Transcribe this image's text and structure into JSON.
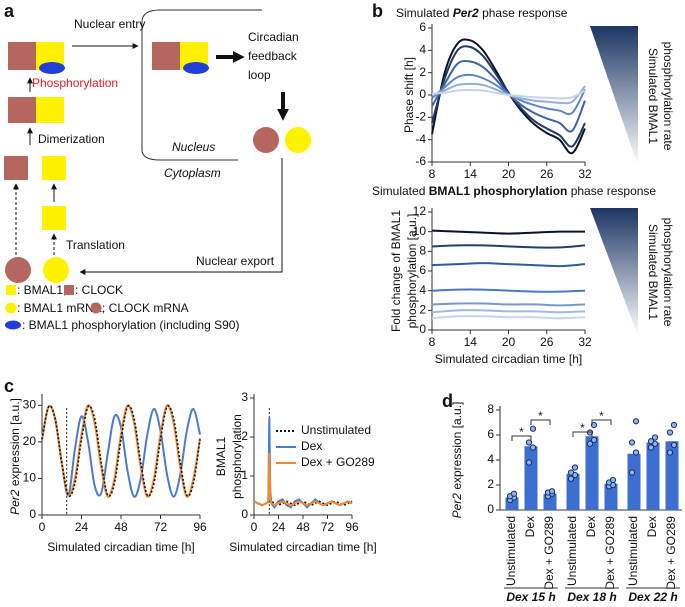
{
  "panel_labels": [
    "a",
    "b",
    "c",
    "d"
  ],
  "diagram": {
    "nuclear_entry": "Nuclear entry",
    "phosphorylation": "Phosphorylation",
    "feedback_loop": [
      "Circadian",
      "feedback",
      "loop"
    ],
    "dimerization": "Dimerization",
    "translation": "Translation",
    "nucleus": "Nucleus",
    "cytoplasm": "Cytoplasm",
    "nuclear_export": "Nuclear export",
    "legend": [
      ": BMAL1,",
      ": CLOCK",
      ": BMAL1 mRNA,",
      ": CLOCK mRNA",
      ": BMAL1 phosphorylation (including S90)"
    ]
  },
  "chart_data": [
    {
      "type": "line",
      "title": [
        "Simulated ",
        "Per2",
        " phase response"
      ],
      "title_style": [
        "normal",
        "bold-italic",
        "normal"
      ],
      "ylabel": "Phase shift [h]",
      "gradient_label": [
        "Simulated BMAL1",
        "phosphorylation rate"
      ],
      "x": [
        8,
        10,
        12,
        14,
        16,
        18,
        20,
        22,
        24,
        26,
        28,
        30,
        32
      ],
      "xlim": [
        8,
        32
      ],
      "xticks": [
        8,
        14,
        20,
        26,
        32
      ],
      "ylim": [
        -6,
        6
      ],
      "yticks": [
        -6,
        -4,
        -2,
        0,
        2,
        4,
        6
      ],
      "series": [
        {
          "color": "#0b1426",
          "values": [
            -3.5,
            2,
            4.6,
            4.9,
            4.0,
            2.2,
            0.2,
            -1.4,
            -2.6,
            -3.4,
            -4.0,
            -5.2,
            -3.0
          ]
        },
        {
          "color": "#1f3a66",
          "values": [
            -2.5,
            1.5,
            4.0,
            4.3,
            3.5,
            1.9,
            0.2,
            -1.2,
            -2.3,
            -3.0,
            -3.6,
            -4.6,
            -2.5
          ]
        },
        {
          "color": "#3b64a8",
          "values": [
            -1.0,
            1.0,
            2.8,
            3.0,
            2.5,
            1.4,
            0.1,
            -0.9,
            -1.6,
            -2.1,
            -2.5,
            -3.2,
            -0.5
          ]
        },
        {
          "color": "#5d86c4",
          "values": [
            -0.3,
            0.7,
            1.6,
            1.8,
            1.5,
            0.9,
            0.1,
            -0.5,
            -0.9,
            -1.2,
            -1.4,
            -1.6,
            0.5
          ]
        },
        {
          "color": "#92aed8",
          "values": [
            0,
            0.4,
            0.9,
            1.0,
            0.9,
            0.5,
            0,
            -0.3,
            -0.5,
            -0.6,
            -0.7,
            -0.6,
            0.8
          ]
        },
        {
          "color": "#c6d4ea",
          "values": [
            0.1,
            0.2,
            0.4,
            0.45,
            0.4,
            0.2,
            0,
            -0.1,
            -0.2,
            -0.25,
            -0.3,
            -0.2,
            0.4
          ]
        }
      ]
    },
    {
      "type": "line",
      "title": [
        "Simulated ",
        "BMAL1 phosphorylation",
        " phase response"
      ],
      "title_style": [
        "normal",
        "bold",
        "normal"
      ],
      "ylabel_lines": [
        "Fold change of BMAL1",
        "phosphorylation [a.u.]"
      ],
      "xlabel": "Simulated circadian time [h]",
      "gradient_label": [
        "Simulated BMAL1",
        "phosphorylation rate"
      ],
      "x": [
        8,
        12,
        16,
        20,
        24,
        28,
        32
      ],
      "xlim": [
        8,
        32
      ],
      "xticks": [
        8,
        14,
        20,
        26,
        32
      ],
      "ylim": [
        0,
        12
      ],
      "yticks": [
        0,
        2,
        4,
        6,
        8,
        10,
        12
      ],
      "series": [
        {
          "color": "#0b1426",
          "values": [
            10.1,
            10.0,
            9.9,
            9.8,
            9.9,
            10.0,
            10.0
          ]
        },
        {
          "color": "#1f3f73",
          "values": [
            8.5,
            8.6,
            8.6,
            8.5,
            8.4,
            8.4,
            8.6
          ]
        },
        {
          "color": "#2f5b9e",
          "values": [
            6.6,
            6.7,
            6.8,
            6.7,
            6.6,
            6.5,
            6.7
          ]
        },
        {
          "color": "#4a78bd",
          "values": [
            4.0,
            4.1,
            4.1,
            4.0,
            3.9,
            3.9,
            4.0
          ]
        },
        {
          "color": "#7899cc",
          "values": [
            2.6,
            2.7,
            2.7,
            2.6,
            2.6,
            2.5,
            2.6
          ]
        },
        {
          "color": "#a2b9de",
          "values": [
            1.8,
            2.0,
            2.0,
            1.9,
            1.9,
            1.8,
            1.9
          ]
        },
        {
          "color": "#c7d4ea",
          "values": [
            1.2,
            1.4,
            1.4,
            1.3,
            1.3,
            1.2,
            1.3
          ]
        }
      ]
    },
    {
      "type": "line",
      "ylabel": [
        "Per2",
        " expression [a.u.]"
      ],
      "ylabel_style": [
        "italic",
        "normal"
      ],
      "xlabel": "Simulated circadian time [h]",
      "marker_x": 15,
      "x": [
        0,
        4,
        8,
        12,
        16,
        20,
        24,
        28,
        32,
        36,
        40,
        44,
        48,
        52,
        56,
        60,
        64,
        68,
        72,
        76,
        80,
        84,
        88,
        92,
        96
      ],
      "xlim": [
        0,
        96
      ],
      "xticks": [
        0,
        24,
        48,
        72,
        96
      ],
      "ylim": [
        0,
        32
      ],
      "yticks": [
        0,
        10,
        20,
        30
      ],
      "series": [
        {
          "name": "Dex",
          "color": "#4a7bd0",
          "style": "solid",
          "values": [
            20.7,
            29.6,
            26.3,
            14.3,
            5.4,
            18,
            27,
            20,
            8,
            6,
            17,
            27,
            24,
            12,
            5,
            10,
            22,
            29,
            23,
            11,
            5,
            11,
            23,
            29,
            22
          ]
        },
        {
          "name": "Dex + GO289",
          "color": "#f08a30",
          "style": "solid",
          "values": [
            20.7,
            29.6,
            26.3,
            14.3,
            5.4,
            10,
            22,
            30,
            25,
            13,
            5,
            10,
            22,
            30,
            25,
            13,
            5,
            10,
            22,
            30,
            25,
            13,
            5,
            10,
            21
          ]
        },
        {
          "name": "Unstimulated",
          "color": "#111111",
          "style": "dotted",
          "values": [
            20.7,
            29.6,
            26.3,
            14.3,
            5.4,
            8.7,
            20.7,
            29.6,
            26.3,
            14.3,
            5.4,
            8.7,
            20.7,
            29.6,
            26.3,
            14.3,
            5.4,
            8.7,
            20.7,
            29.6,
            26.3,
            14.3,
            5.4,
            8.7,
            20.7
          ]
        }
      ]
    },
    {
      "type": "line",
      "ylabel_lines": [
        "BMAL1",
        "phosphorylation"
      ],
      "xlabel": "Simulated circadian time [h]",
      "marker_x": 15,
      "legend": "upper right",
      "x": [
        0,
        4,
        8,
        12,
        14,
        15,
        16,
        17,
        20,
        24,
        28,
        32,
        36,
        40,
        44,
        48,
        52,
        56,
        60,
        64,
        68,
        72,
        76,
        80,
        84,
        88,
        92,
        96
      ],
      "xlim": [
        0,
        96
      ],
      "xticks": [
        0,
        24,
        48,
        72,
        96
      ],
      "ylim": [
        0,
        3
      ],
      "yticks": [
        0,
        1,
        2,
        3
      ],
      "series": [
        {
          "name": "Unstimulated",
          "color": "#111111",
          "style": "dotted",
          "values": [
            0.35,
            0.3,
            0.25,
            0.3,
            0.33,
            0.34,
            0.35,
            0.35,
            0.3,
            0.25,
            0.3,
            0.35,
            0.3,
            0.25,
            0.3,
            0.35,
            0.3,
            0.25,
            0.3,
            0.35,
            0.3,
            0.25,
            0.3,
            0.35,
            0.3,
            0.25,
            0.3,
            0.35
          ]
        },
        {
          "name": "Dex",
          "color": "#4a7bd0",
          "style": "solid",
          "values": [
            0.35,
            0.3,
            0.25,
            0.3,
            0.33,
            2.5,
            0.6,
            0.3,
            0.2,
            0.35,
            0.4,
            0.25,
            0.2,
            0.35,
            0.4,
            0.3,
            0.2,
            0.3,
            0.4,
            0.3,
            0.25,
            0.3,
            0.35,
            0.3,
            0.25,
            0.3,
            0.35,
            0.3
          ]
        },
        {
          "name": "Dex + GO289",
          "color": "#f08a30",
          "style": "solid",
          "values": [
            0.35,
            0.3,
            0.25,
            0.3,
            0.33,
            1.6,
            0.4,
            0.3,
            0.25,
            0.3,
            0.35,
            0.3,
            0.25,
            0.3,
            0.35,
            0.3,
            0.25,
            0.3,
            0.35,
            0.3,
            0.25,
            0.3,
            0.35,
            0.3,
            0.25,
            0.3,
            0.35,
            0.3
          ]
        }
      ]
    },
    {
      "type": "bar",
      "ylabel": [
        "Per2",
        " expression [a.u.]"
      ],
      "ylabel_style": [
        "italic",
        "normal"
      ],
      "categories": [
        "Unstimulated",
        "Dex",
        "Dex + GO289",
        "Unstimulated",
        "Dex",
        "Dex + GO289",
        "Unstimulated",
        "Dex",
        "Dex + GO289"
      ],
      "groups": [
        "Dex 15 h",
        "Dex 18 h",
        "Dex 22 h"
      ],
      "values": [
        1.0,
        5.1,
        1.3,
        2.9,
        5.9,
        2.1,
        4.5,
        5.4,
        5.5
      ],
      "points": [
        [
          0.8,
          1.0,
          1.1,
          1.3
        ],
        [
          3.8,
          5.0,
          5.4,
          6.5
        ],
        [
          1.1,
          1.3,
          1.4,
          1.5
        ],
        [
          2.5,
          2.8,
          3.0,
          3.4
        ],
        [
          5.3,
          5.6,
          6.2,
          6.8
        ],
        [
          1.9,
          2.0,
          2.2,
          2.4
        ],
        [
          3.0,
          4.6,
          5.4,
          7.1
        ],
        [
          5.0,
          5.3,
          5.5,
          5.8
        ],
        [
          4.6,
          5.2,
          6.2,
          6.8
        ]
      ],
      "color": "#3d6fd1",
      "significance": [
        {
          "pair": [
            0,
            1
          ],
          "label": "*"
        },
        {
          "pair": [
            1,
            2
          ],
          "label": "*"
        },
        {
          "pair": [
            3,
            4
          ],
          "label": "*"
        },
        {
          "pair": [
            4,
            5
          ],
          "label": "*"
        }
      ],
      "ylim": [
        0,
        8
      ],
      "yticks": [
        0,
        2,
        4,
        6,
        8
      ]
    }
  ]
}
